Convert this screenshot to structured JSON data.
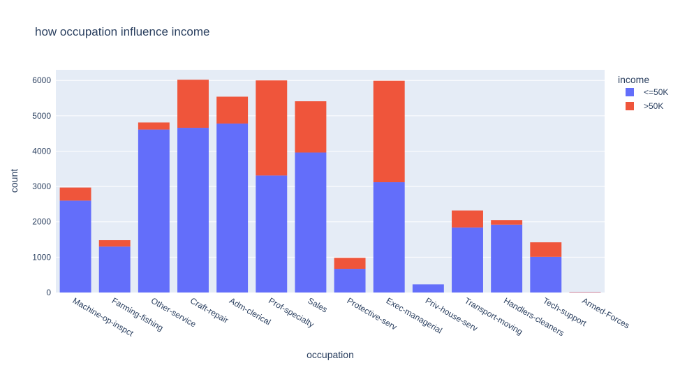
{
  "chart_data": {
    "type": "bar",
    "barmode": "stack",
    "title": "how occupation influence income",
    "xlabel": "occupation",
    "ylabel": "count",
    "ylim": [
      0,
      6300
    ],
    "yticks": [
      0,
      1000,
      2000,
      3000,
      4000,
      5000,
      6000
    ],
    "grid": true,
    "legend": {
      "title": "income",
      "position": "top-right"
    },
    "categories": [
      "Machine-op-inspct",
      "Farming-fishing",
      "Other-service",
      "Craft-repair",
      "Adm-clerical",
      "Prof-specialty",
      "Sales",
      "Protective-serv",
      "Exec-managerial",
      "Priv-house-serv",
      "Transport-moving",
      "Handlers-cleaners",
      "Tech-support",
      "Armed-Forces"
    ],
    "series": [
      {
        "name": "<=50K",
        "color": "#636efa",
        "values": [
          2600,
          1300,
          4610,
          4660,
          4780,
          3310,
          3960,
          670,
          3120,
          230,
          1840,
          1920,
          1010,
          10
        ]
      },
      {
        "name": ">50K",
        "color": "#ef553b",
        "values": [
          370,
          180,
          200,
          1360,
          760,
          2690,
          1450,
          310,
          2870,
          0,
          480,
          130,
          410,
          5
        ]
      }
    ]
  }
}
